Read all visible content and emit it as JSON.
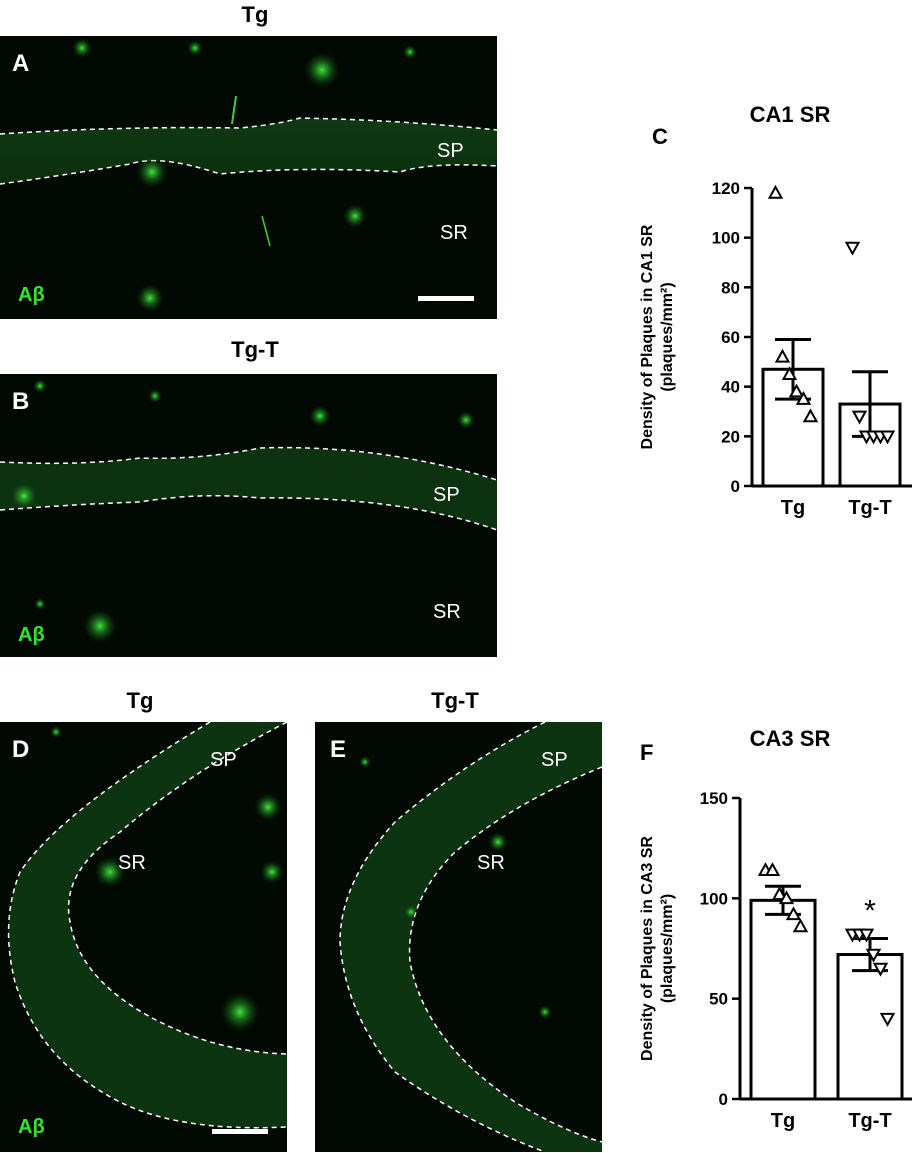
{
  "panels": {
    "A": {
      "letter": "A",
      "title": "Tg",
      "regions": [
        "SP",
        "SR"
      ],
      "stain": "Aβ"
    },
    "B": {
      "letter": "B",
      "title": "Tg-T",
      "regions": [
        "SP",
        "SR"
      ],
      "stain": "Aβ"
    },
    "C": {
      "letter": "C"
    },
    "D": {
      "letter": "D",
      "title": "Tg",
      "regions": [
        "SP",
        "SR"
      ],
      "stain": "Aβ"
    },
    "E": {
      "letter": "E",
      "title": "Tg-T",
      "regions": [
        "SP",
        "SR"
      ]
    },
    "F": {
      "letter": "F"
    }
  },
  "colors": {
    "stain": "#2ee62e",
    "background": "#020902",
    "bar": "#ffffff",
    "stroke": "#000000"
  },
  "chart_data": [
    {
      "type": "bar",
      "title": "CA1 SR",
      "ylabel": "Density of Plaques in CA1 SR",
      "yunit": "(plaques/mm²)",
      "categories": [
        "Tg",
        "Tg-T"
      ],
      "values": [
        47,
        33
      ],
      "errors": [
        12,
        13
      ],
      "ylim": [
        0,
        120
      ],
      "yticks": [
        0,
        20,
        40,
        60,
        80,
        100,
        120
      ],
      "points": [
        {
          "marker": "triangle-up",
          "values": [
            118,
            52,
            45,
            38,
            35,
            28
          ]
        },
        {
          "marker": "triangle-down",
          "values": [
            96,
            28,
            20,
            20,
            20,
            20
          ]
        }
      ],
      "grid": false
    },
    {
      "type": "bar",
      "title": "CA3 SR",
      "ylabel": "Density of Plaques in CA3 SR",
      "yunit": "(plaques/mm²)",
      "categories": [
        "Tg",
        "Tg-T"
      ],
      "values": [
        99,
        72
      ],
      "errors": [
        7,
        8
      ],
      "ylim": [
        0,
        150
      ],
      "yticks": [
        0,
        50,
        100,
        150
      ],
      "points": [
        {
          "marker": "triangle-up",
          "values": [
            114,
            114,
            102,
            100,
            92,
            86
          ]
        },
        {
          "marker": "triangle-down",
          "values": [
            82,
            82,
            82,
            72,
            65,
            40
          ]
        }
      ],
      "annotation": "*",
      "grid": false
    }
  ]
}
